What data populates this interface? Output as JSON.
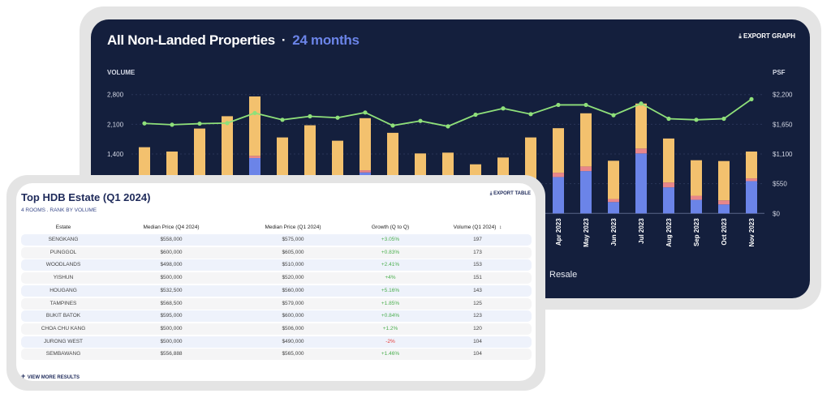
{
  "chart_card": {
    "title": "All Non-Landed Properties",
    "separator": "·",
    "period": "24 months",
    "export_label": "EXPORT GRAPH",
    "left_axis_title": "VOLUME",
    "right_axis_title": "PSF",
    "legend_visible": "Resale"
  },
  "chart_data": {
    "type": "bar+line",
    "left_axis": {
      "label": "VOLUME",
      "ticks": [
        "1,400",
        "2,100",
        "2,800"
      ],
      "range": [
        0,
        2800
      ],
      "step": 700
    },
    "right_axis": {
      "label": "PSF",
      "ticks": [
        "$0",
        "$550",
        "$1,100",
        "$1,650",
        "$2,200"
      ],
      "range": [
        0,
        2200
      ],
      "step": 550
    },
    "categories": [
      "",
      "",
      "",
      "",
      "",
      "",
      "",
      "",
      "",
      "",
      "",
      "",
      "",
      "",
      "",
      "Apr 2023",
      "May 2023",
      "Jun 2023",
      "Jul 2023",
      "Aug 2023",
      "Sep 2023",
      "Oct 2023",
      "Nov 2023"
    ],
    "stacked_series": [
      {
        "color": "#6b84e8",
        "values": [
          500,
          450,
          600,
          650,
          1304,
          600,
          800,
          600,
          965,
          600,
          450,
          450,
          400,
          450,
          700,
          857,
          997,
          268,
          1413,
          614,
          320,
          211,
          761
        ]
      },
      {
        "color": "#e8868a",
        "values": [
          50,
          50,
          60,
          60,
          52,
          50,
          63,
          50,
          52,
          50,
          50,
          50,
          50,
          50,
          60,
          102,
          109,
          71,
          115,
          115,
          96,
          96,
          64
        ]
      },
      {
        "color": "#f3c16e",
        "values": [
          1010,
          958,
          1340,
          1580,
          1400,
          1140,
          1214,
          1063,
          1227,
          1249,
          913,
          932,
          707,
          817,
          1030,
          1049,
          1253,
          902,
          1061,
          1036,
          837,
          927,
          633
        ]
      }
    ],
    "totals": [
      1560,
      1458,
      2000,
      2290,
      2756,
      1790,
      2077,
      1713,
      2244,
      1899,
      1413,
      1432,
      1157,
      1317,
      1790,
      2008,
      2359,
      1241,
      2589,
      1765,
      1253,
      1234,
      1458
    ],
    "line_series": {
      "color": "#8fe07a",
      "axis": "right",
      "values": [
        1667,
        1642,
        1662,
        1672,
        1858,
        1733,
        1798,
        1772,
        1868,
        1627,
        1712,
        1612,
        1828,
        1944,
        1838,
        2009,
        2009,
        1818,
        2034,
        1753,
        1733,
        1753,
        2115
      ]
    },
    "grid": true
  },
  "table_card": {
    "title": "Top HDB Estate (Q1 2024)",
    "subtitle": "4 ROOMS . RANK BY VOLUME",
    "export_label": "EXPORT TABLE",
    "columns": [
      "Estate",
      "Median Price (Q4 2024)",
      "Median Price (Q1 2024)",
      "Growth (Q to Q)",
      "Volume (Q1 2024)"
    ],
    "sort_icon": "↕",
    "rows": [
      [
        "SENGKANG",
        "$558,000",
        "$575,000",
        "+3.05%",
        "197"
      ],
      [
        "PUNGGOL",
        "$600,000",
        "$605,000",
        "+0.83%",
        "173"
      ],
      [
        "WOODLANDS",
        "$498,000",
        "$510,000",
        "+2.41%",
        "153"
      ],
      [
        "YISHUN",
        "$500,000",
        "$520,000",
        "+4%",
        "151"
      ],
      [
        "HOUGANG",
        "$532,500",
        "$560,000",
        "+5.16%",
        "143"
      ],
      [
        "TAMPINES",
        "$568,500",
        "$579,000",
        "+1.85%",
        "125"
      ],
      [
        "BUKIT BATOK",
        "$595,000",
        "$600,000",
        "+0.84%",
        "123"
      ],
      [
        "CHOA CHU KANG",
        "$500,000",
        "$506,000",
        "+1.2%",
        "120"
      ],
      [
        "JURONG WEST",
        "$500,000",
        "$490,000",
        "-2%",
        "104"
      ],
      [
        "SEMBAWANG",
        "$556,888",
        "$565,000",
        "+1.46%",
        "104"
      ]
    ],
    "view_more_label": "VIEW MORE RESULTS",
    "colors": {
      "positive": "#4caf50",
      "negative": "#e53935"
    }
  }
}
